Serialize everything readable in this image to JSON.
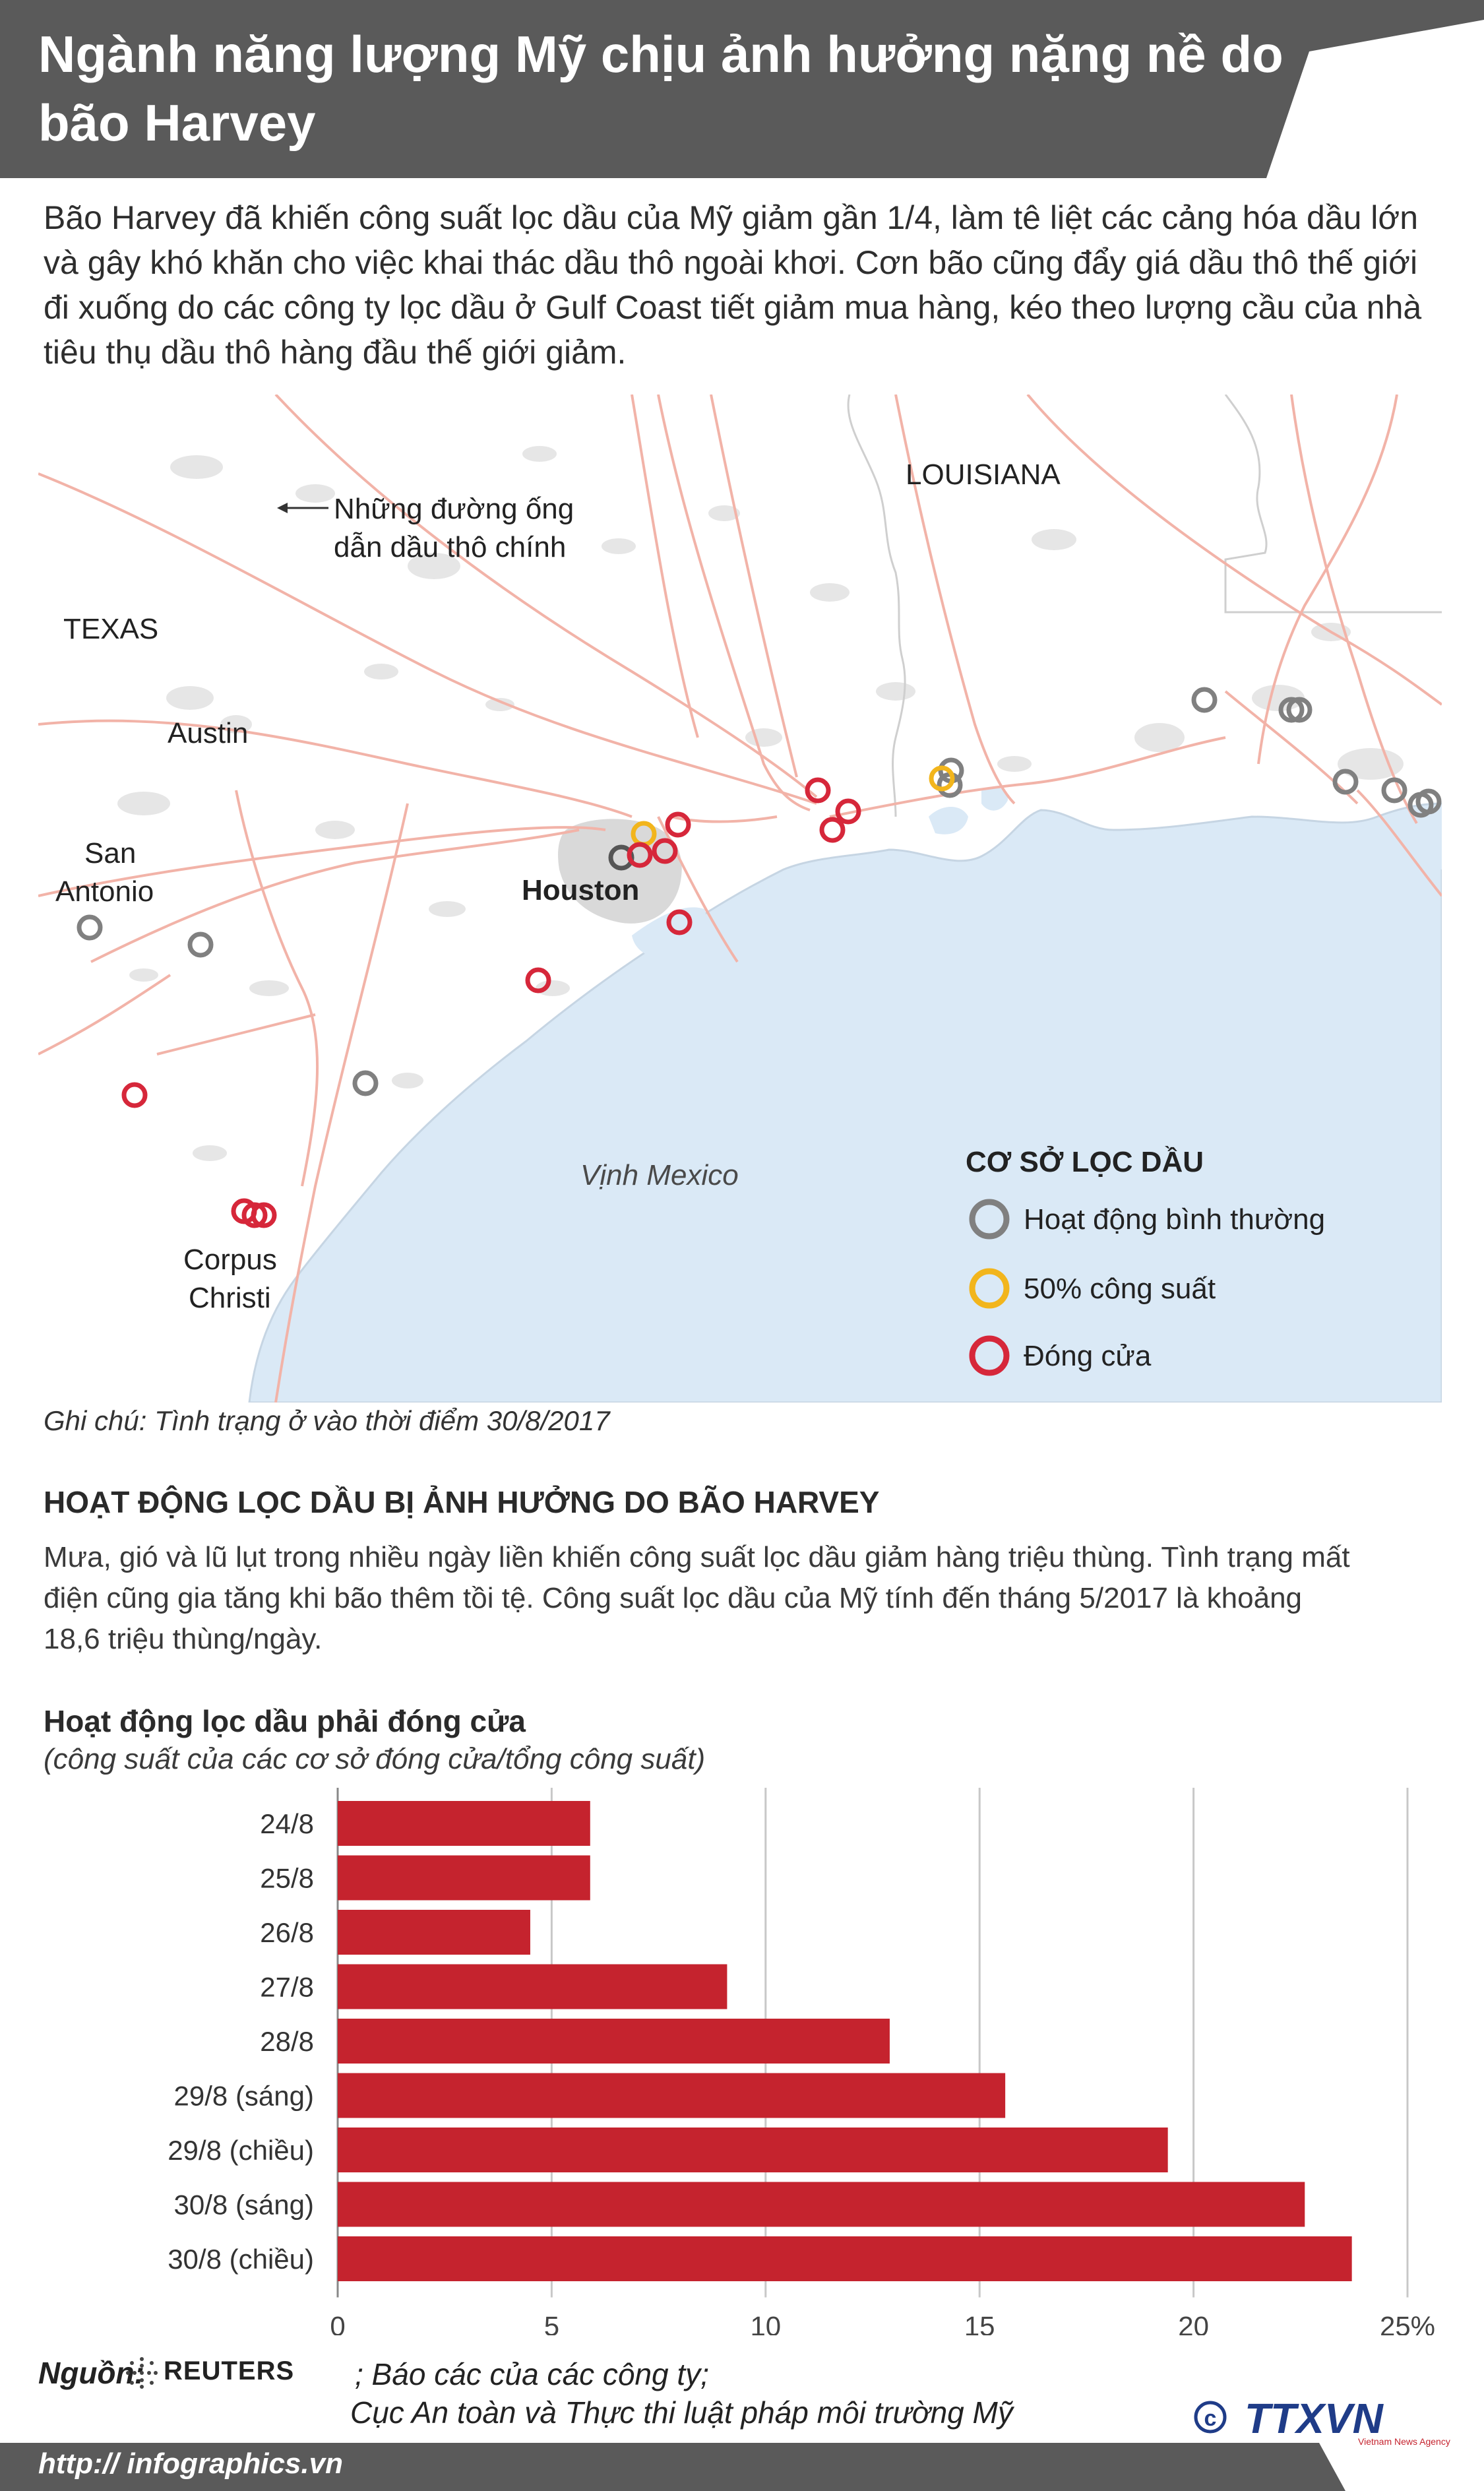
{
  "header": {
    "title": "Ngành năng lượng Mỹ chịu ảnh hưởng nặng nề do bão Harvey"
  },
  "intro": "Bão Harvey đã khiến công suất lọc dầu của Mỹ giảm gần 1/4, làm tê liệt các cảng hóa dầu lớn và gây khó khăn cho việc khai thác dầu thô ngoài khơi. Cơn bão cũng đẩy giá dầu thô thế giới đi xuống do các công ty lọc dầu ở Gulf Coast tiết giảm mua hàng, kéo theo lượng cầu của nhà tiêu thụ dầu thô hàng đầu thế giới giảm.",
  "map": {
    "labels": {
      "louisiana": "LOUISIANA",
      "texas": "TEXAS",
      "austin": "Austin",
      "san_antonio_1": "San",
      "san_antonio_2": "Antonio",
      "houston": "Houston",
      "corpus_1": "Corpus",
      "corpus_2": "Christi",
      "gulf": "Vịnh Mexico",
      "pipelines_1": "Những đường ống",
      "pipelines_2": "dẫn dầu thô chính"
    },
    "legend": {
      "title": "CƠ SỞ LỌC DẦU",
      "normal": "Hoạt động bình thường",
      "half": "50% công suất",
      "closed": "Đóng cửa"
    },
    "colors": {
      "normal": "#808080",
      "half": "#f2b51c",
      "closed": "#d6273a",
      "water": "#dae9f6",
      "pipeline": "#f2b3a8"
    }
  },
  "note": "Ghi chú: Tình trạng ở vào thời điểm 30/8/2017",
  "section": {
    "title": "HOẠT ĐỘNG LỌC DẦU BỊ ẢNH HƯỞNG DO BÃO HARVEY",
    "body": "Mưa, gió và lũ lụt trong nhiều ngày liền khiến công suất lọc dầu giảm hàng triệu thùng. Tình trạng mất điện cũng gia tăng khi bão thêm tồi tệ. Công suất lọc dầu của Mỹ tính đến tháng 5/2017 là khoảng 18,6 triệu thùng/ngày."
  },
  "chart_data": {
    "type": "bar",
    "orientation": "horizontal",
    "title": "Hoạt động lọc dầu phải đóng cửa",
    "subtitle": "(công suất của các cơ sở đóng cửa/tổng công suất)",
    "categories": [
      "24/8",
      "25/8",
      "26/8",
      "27/8",
      "28/8",
      "29/8 (sáng)",
      "29/8 (chiều)",
      "30/8 (sáng)",
      "30/8 (chiều)"
    ],
    "values": [
      5.9,
      5.9,
      4.5,
      9.1,
      12.9,
      15.6,
      19.4,
      22.6,
      23.7
    ],
    "xlim": [
      0,
      25
    ],
    "xticks": [
      "0",
      "5",
      "10",
      "15",
      "20",
      "25%"
    ],
    "grid": true,
    "bar_color": "#c5232e"
  },
  "source": {
    "label": "Nguồn:",
    "reuters": "REUTERS",
    "line1": "; Báo các của các công ty;",
    "line2": "Cục An toàn và Thực thi luật pháp môi trường Mỹ"
  },
  "footer": {
    "website": "http:// infographics.vn",
    "agency": "TTXVN",
    "agency_sub": "Vietnam News Agency"
  }
}
